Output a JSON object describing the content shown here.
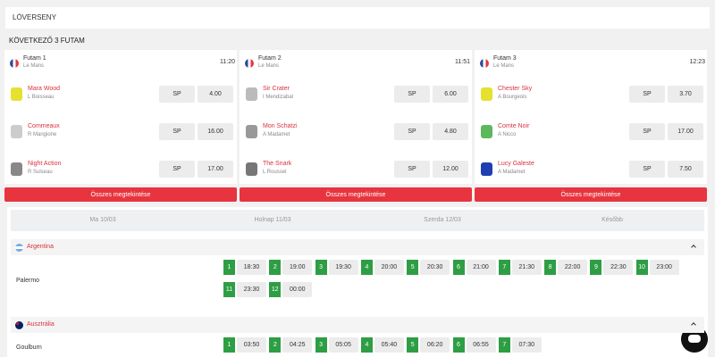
{
  "header": {
    "title": "LÓVERSENY"
  },
  "next_races": {
    "title": "KÖVETKEZŐ 3 FUTAM",
    "races": [
      {
        "name": "Futam 1",
        "venue": "Le Mans",
        "time": "11:20",
        "button": "Összes megtekintése",
        "runners": [
          {
            "horse": "Mara Wood",
            "jockey": "L Boisseau",
            "sp": "SP",
            "odds": "4.00"
          },
          {
            "horse": "Commeaux",
            "jockey": "R Mangione",
            "sp": "SP",
            "odds": "16.00"
          },
          {
            "horse": "Night Action",
            "jockey": "R Sulseau",
            "sp": "SP",
            "odds": "17.00"
          }
        ]
      },
      {
        "name": "Futam 2",
        "venue": "Le Mans",
        "time": "11:51",
        "button": "Összes megtekintése",
        "runners": [
          {
            "horse": "Sir Crater",
            "jockey": "I Mendizabal",
            "sp": "SP",
            "odds": "6.00"
          },
          {
            "horse": "Mon Schatzi",
            "jockey": "A Madamet",
            "sp": "SP",
            "odds": "4.80"
          },
          {
            "horse": "The Snark",
            "jockey": "L Roussel",
            "sp": "SP",
            "odds": "12.00"
          }
        ]
      },
      {
        "name": "Futam 3",
        "venue": "Le Mans",
        "time": "12:23",
        "button": "Összes megtekintése",
        "runners": [
          {
            "horse": "Chester Sky",
            "jockey": "A Bourgeois",
            "sp": "SP",
            "odds": "3.70"
          },
          {
            "horse": "Comte Noir",
            "jockey": "A Nicco",
            "sp": "SP",
            "odds": "17.00"
          },
          {
            "horse": "Lucy Galeste",
            "jockey": "A Madamet",
            "sp": "SP",
            "odds": "7.50"
          }
        ]
      }
    ]
  },
  "day_tabs": [
    "Ma 10/03",
    "Holnap 11/03",
    "Szerda 12/03",
    "Később"
  ],
  "countries": [
    {
      "name": "Argentina",
      "meetings": [
        {
          "venue": "Palermo",
          "races": [
            {
              "number": "1",
              "time": "18:30"
            },
            {
              "number": "2",
              "time": "19:00"
            },
            {
              "number": "3",
              "time": "19:30"
            },
            {
              "number": "4",
              "time": "20:00"
            },
            {
              "number": "5",
              "time": "20:30"
            },
            {
              "number": "6",
              "time": "21:00"
            },
            {
              "number": "7",
              "time": "21:30"
            },
            {
              "number": "8",
              "time": "22:00"
            },
            {
              "number": "9",
              "time": "22:30"
            },
            {
              "number": "10",
              "time": "23:00"
            },
            {
              "number": "11",
              "time": "23:30"
            },
            {
              "number": "12",
              "time": "00:00"
            }
          ]
        }
      ]
    },
    {
      "name": "Ausztrália",
      "meetings": [
        {
          "venue": "Goulburn",
          "races": [
            {
              "number": "1",
              "time": "03:50"
            },
            {
              "number": "2",
              "time": "04:25"
            },
            {
              "number": "3",
              "time": "05:05"
            },
            {
              "number": "4",
              "time": "05:40"
            },
            {
              "number": "5",
              "time": "06:20"
            },
            {
              "number": "6",
              "time": "06:55"
            },
            {
              "number": "7",
              "time": "07:30"
            }
          ]
        }
      ]
    }
  ]
}
